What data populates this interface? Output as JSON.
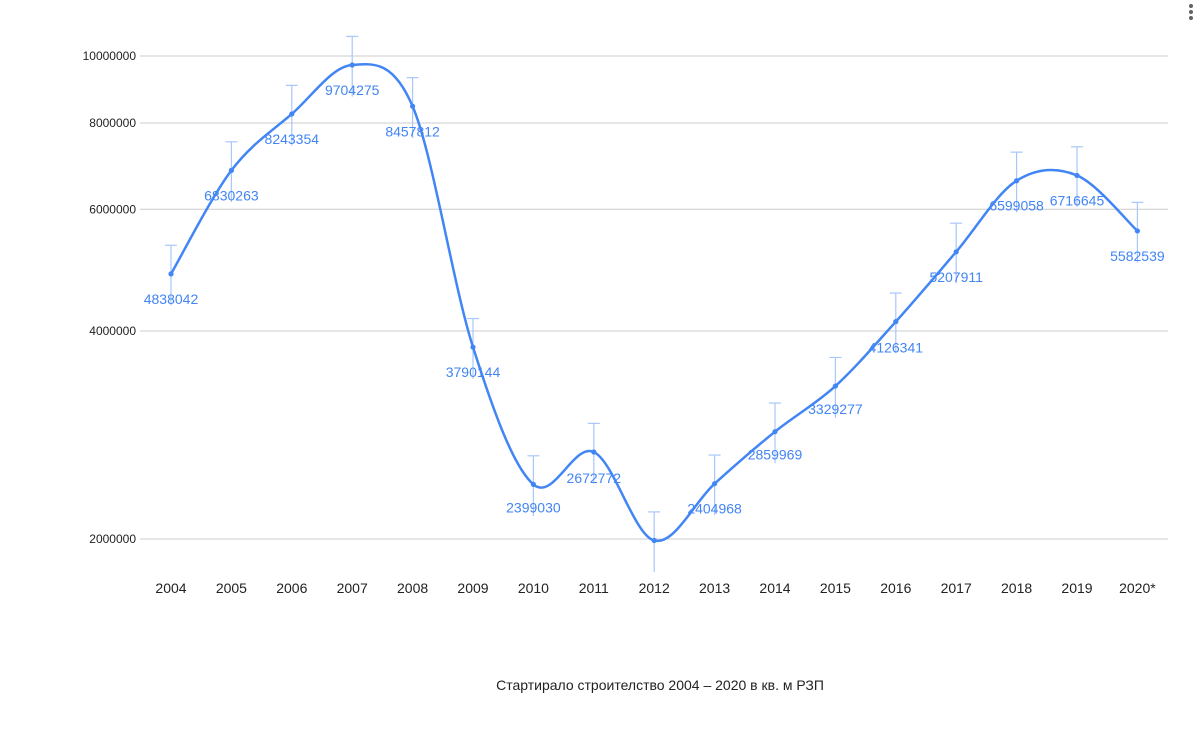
{
  "chart_data": {
    "type": "line",
    "xlabel": "Стартирало строителство 2004 – 2020 в кв. м РЗП",
    "ylabel": "",
    "ylim": [
      1800000,
      10600000
    ],
    "yscale": "log",
    "yticks": [
      {
        "value": 2000000,
        "label": "2000000"
      },
      {
        "value": 4000000,
        "label": "4000000"
      },
      {
        "value": 6000000,
        "label": "6000000"
      },
      {
        "value": 8000000,
        "label": "8000000"
      },
      {
        "value": 10000000,
        "label": "10000000"
      }
    ],
    "grid": true,
    "error_bars": true,
    "categories": [
      "2004",
      "2005",
      "2006",
      "2007",
      "2008",
      "2009",
      "2010",
      "2011",
      "2012",
      "2013",
      "2014",
      "2015",
      "2016",
      "2017",
      "2018",
      "2019",
      "2020*"
    ],
    "series": [
      {
        "values": [
          4838042,
          6830263,
          8243354,
          9704275,
          8457812,
          3790144,
          2399030,
          2672772,
          1990000,
          2404968,
          2859969,
          3329277,
          4126341,
          5207911,
          6599058,
          6716645,
          5582539
        ],
        "labels": [
          "4838042",
          "6830263",
          "8243354",
          "9704275",
          "8457812",
          "3790144",
          "2399030",
          "2672772",
          "",
          "2404968",
          "2859969",
          "3329277",
          "4126341",
          "5207911",
          "6599058",
          "6716645",
          "5582539"
        ],
        "color": "#4285f4",
        "error_color": "#a8c7fa"
      }
    ]
  }
}
